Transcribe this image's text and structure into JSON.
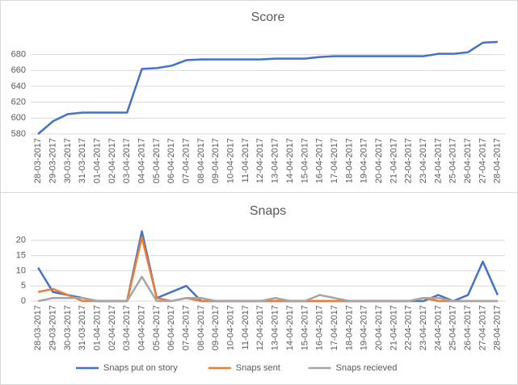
{
  "chart_data": [
    {
      "type": "line",
      "title": "Score",
      "categories": [
        "28-03-2017",
        "29-03-2017",
        "30-03-2017",
        "31-03-2017",
        "01-04-2017",
        "02-04-2017",
        "03-04-2017",
        "04-04-2017",
        "05-04-2017",
        "06-04-2017",
        "07-04-2017",
        "08-04-2017",
        "09-04-2017",
        "10-04-2017",
        "11-04-2017",
        "12-04-2017",
        "13-04-2017",
        "14-04-2017",
        "15-04-2017",
        "16-04-2017",
        "17-04-2017",
        "18-04-2017",
        "19-04-2017",
        "20-04-2017",
        "21-04-2017",
        "22-04-2017",
        "23-04-2017",
        "24-04-2017",
        "25-04-2017",
        "26-04-2017",
        "27-04-2017",
        "28-04-2017"
      ],
      "series": [
        {
          "color": "#4472c4",
          "values": [
            580,
            596,
            605,
            607,
            607,
            607,
            607,
            662,
            663,
            666,
            673,
            674,
            674,
            674,
            674,
            674,
            675,
            675,
            675,
            677,
            678,
            678,
            678,
            678,
            678,
            678,
            678,
            681,
            681,
            683,
            695,
            696
          ]
        }
      ],
      "ylim": [
        580,
        700
      ],
      "yticks": [
        580,
        600,
        620,
        640,
        660,
        680
      ],
      "grid": true
    },
    {
      "type": "line",
      "title": "Snaps",
      "categories": [
        "28-03-2017",
        "29-03-2017",
        "30-03-2017",
        "31-03-2017",
        "01-04-2017",
        "02-04-2017",
        "03-04-2017",
        "04-04-2017",
        "05-04-2017",
        "06-04-2017",
        "07-04-2017",
        "08-04-2017",
        "09-04-2017",
        "10-04-2017",
        "11-04-2017",
        "12-04-2017",
        "13-04-2017",
        "14-04-2017",
        "15-04-2017",
        "16-04-2017",
        "17-04-2017",
        "18-04-2017",
        "19-04-2017",
        "20-04-2017",
        "21-04-2017",
        "22-04-2017",
        "23-04-2017",
        "24-04-2017",
        "25-04-2017",
        "26-04-2017",
        "27-04-2017",
        "28-04-2017"
      ],
      "series": [
        {
          "name": "Snaps put on story",
          "color": "#4472c4",
          "values": [
            11,
            3,
            2,
            1,
            0,
            0,
            0,
            23,
            1,
            3,
            5,
            0,
            0,
            0,
            0,
            0,
            0,
            0,
            0,
            0,
            0,
            0,
            0,
            0,
            0,
            0,
            0,
            2,
            0,
            2,
            13,
            2
          ]
        },
        {
          "name": "Snaps sent",
          "color": "#ed7d31",
          "values": [
            3,
            4,
            2,
            0,
            0,
            0,
            0,
            21,
            1,
            0,
            1,
            0,
            0,
            0,
            0,
            0,
            0,
            0,
            0,
            0,
            0,
            0,
            0,
            0,
            0,
            0,
            1,
            0,
            0,
            0,
            0,
            0
          ]
        },
        {
          "name": "Snaps recieved",
          "color": "#a5a5a5",
          "values": [
            0,
            1,
            1,
            1,
            0,
            0,
            0,
            8,
            0,
            0,
            1,
            1,
            0,
            0,
            0,
            0,
            1,
            0,
            0,
            2,
            1,
            0,
            0,
            0,
            0,
            0,
            1,
            1,
            0,
            0,
            0,
            0
          ]
        }
      ],
      "ylim": [
        0,
        25
      ],
      "yticks": [
        0,
        5,
        10,
        15,
        20
      ],
      "grid": true,
      "legend": "bottom"
    }
  ]
}
